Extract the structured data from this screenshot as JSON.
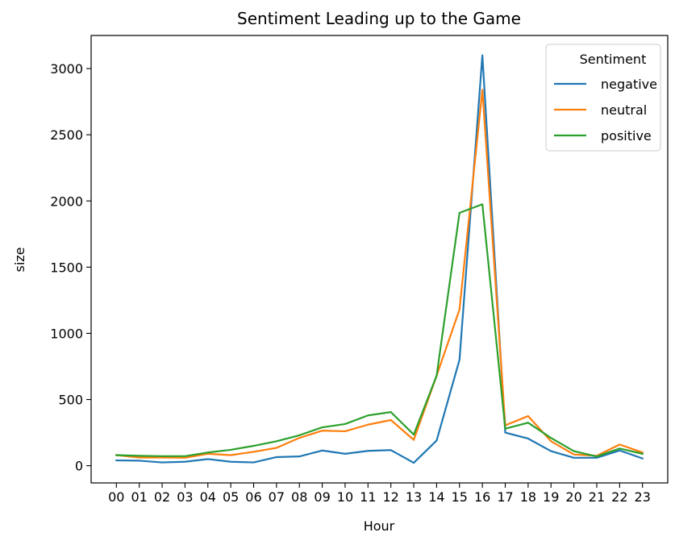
{
  "chart_data": {
    "type": "line",
    "title": "Sentiment Leading up to the Game",
    "xlabel": "Hour",
    "ylabel": "size",
    "categories": [
      "00",
      "01",
      "02",
      "03",
      "04",
      "05",
      "06",
      "07",
      "08",
      "09",
      "10",
      "11",
      "12",
      "13",
      "14",
      "15",
      "16",
      "17",
      "18",
      "19",
      "20",
      "21",
      "22",
      "23"
    ],
    "ylim": [
      -130,
      3250
    ],
    "yticks": [
      0,
      500,
      1000,
      1500,
      2000,
      2500,
      3000
    ],
    "grid": false,
    "legend": {
      "title": "Sentiment",
      "placement": "upper-right"
    },
    "series": [
      {
        "name": "negative",
        "color": "#1f77b4",
        "values": [
          40,
          38,
          25,
          30,
          50,
          30,
          25,
          65,
          70,
          115,
          90,
          112,
          118,
          22,
          190,
          800,
          3100,
          250,
          205,
          110,
          60,
          60,
          115,
          55
        ]
      },
      {
        "name": "neutral",
        "color": "#ff7f0e",
        "values": [
          80,
          62,
          62,
          60,
          90,
          80,
          105,
          135,
          210,
          265,
          260,
          310,
          345,
          195,
          680,
          1180,
          2840,
          305,
          375,
          185,
          85,
          75,
          160,
          100
        ]
      },
      {
        "name": "positive",
        "color": "#2ca02c",
        "values": [
          80,
          75,
          72,
          72,
          100,
          120,
          150,
          185,
          230,
          290,
          315,
          380,
          405,
          235,
          680,
          1910,
          1975,
          280,
          325,
          210,
          110,
          70,
          130,
          90
        ]
      }
    ]
  }
}
